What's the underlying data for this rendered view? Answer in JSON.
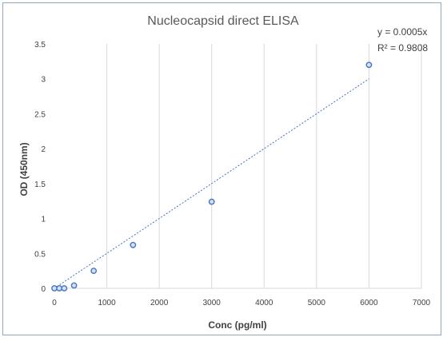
{
  "chart_data": {
    "type": "scatter",
    "title": "Nucleocapsid direct ELISA",
    "xlabel": "Conc (pg/ml)",
    "ylabel": "OD (450nm)",
    "xlim": [
      0,
      7000
    ],
    "ylim": [
      0,
      3.5
    ],
    "x_ticks": [
      "0",
      "1000",
      "2000",
      "3000",
      "4000",
      "5000",
      "6000",
      "7000"
    ],
    "y_ticks": [
      "0",
      "0.5",
      "1",
      "1.5",
      "2",
      "2.5",
      "3",
      "3.5"
    ],
    "grid": "vertical",
    "legend": "none",
    "series": [
      {
        "x": [
          0,
          94,
          188,
          375,
          750,
          1500,
          3000,
          6000
        ],
        "y": [
          0.0,
          0.0,
          0.0,
          0.04,
          0.25,
          0.62,
          1.24,
          3.2
        ],
        "marker_color": "#4472c4"
      }
    ],
    "trendline": {
      "type": "linear",
      "slope": 0.0005,
      "x_range": [
        0,
        6000
      ],
      "color": "#4472c4",
      "style": "dotted",
      "equation": "y = 0.0005x",
      "r_squared": "R² = 0.9808"
    }
  }
}
